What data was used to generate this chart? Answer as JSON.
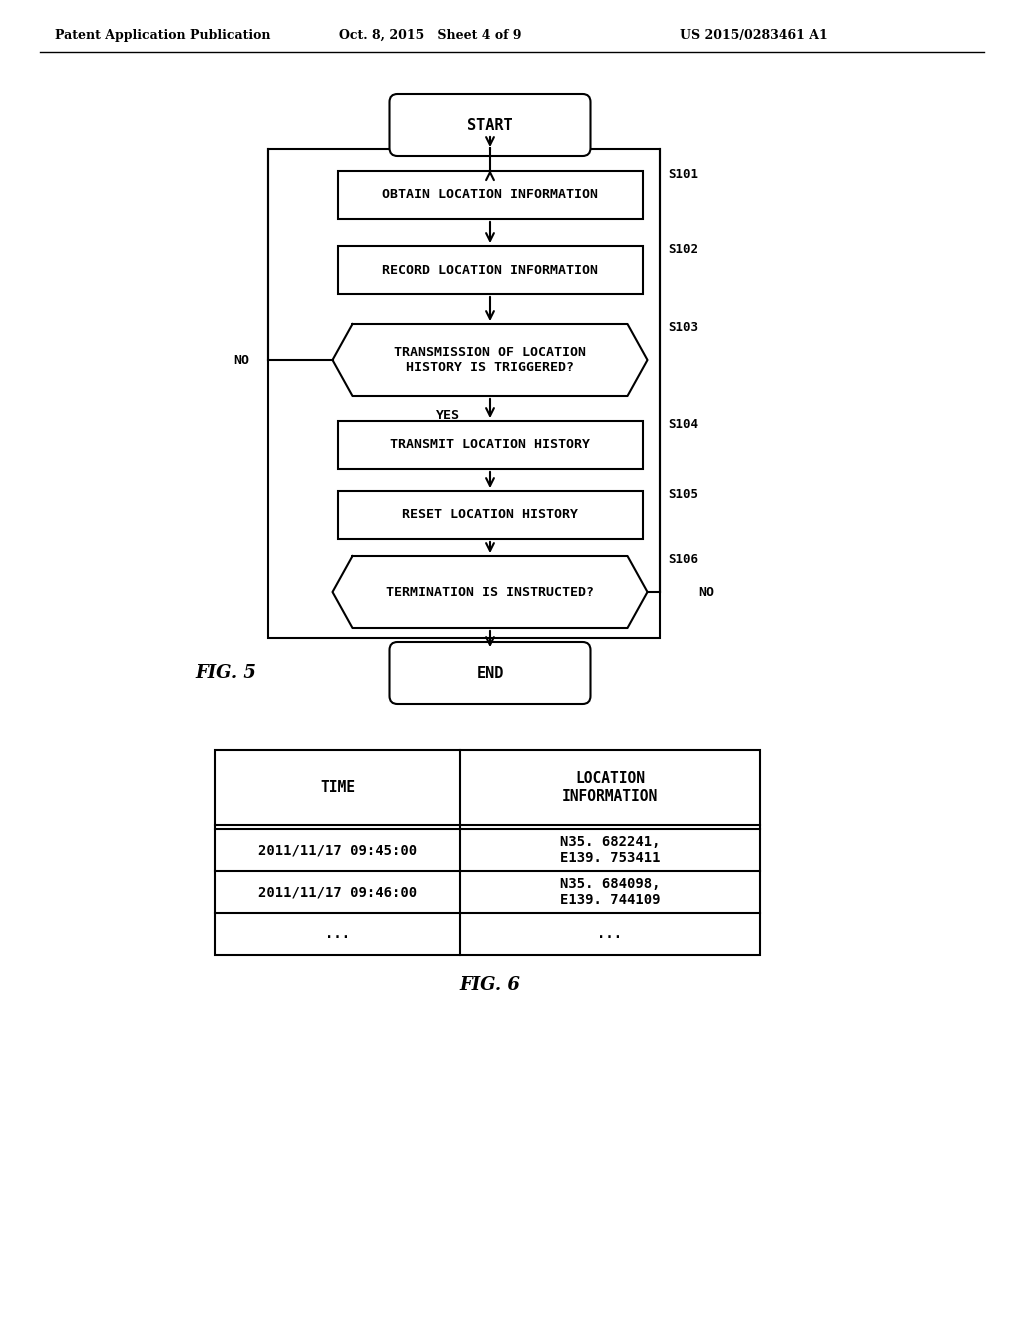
{
  "bg_color": "#ffffff",
  "header_left": "Patent Application Publication",
  "header_mid": "Oct. 8, 2015   Sheet 4 of 9",
  "header_right": "US 2015/0283461 A1",
  "fig5_label": "FIG. 5",
  "fig6_label": "FIG. 6",
  "flowchart": {
    "start_text": "START",
    "end_text": "END",
    "boxes": [
      {
        "id": "s101",
        "text": "OBTAIN LOCATION INFORMATION",
        "label": "S101",
        "type": "rect"
      },
      {
        "id": "s102",
        "text": "RECORD LOCATION INFORMATION",
        "label": "S102",
        "type": "rect"
      },
      {
        "id": "s103",
        "text": "TRANSMISSION OF LOCATION\nHISTORY IS TRIGGERED?",
        "label": "S103",
        "type": "diamond"
      },
      {
        "id": "s104",
        "text": "TRANSMIT LOCATION HISTORY",
        "label": "S104",
        "type": "rect"
      },
      {
        "id": "s105",
        "text": "RESET LOCATION HISTORY",
        "label": "S105",
        "type": "rect"
      },
      {
        "id": "s106",
        "text": "TERMINATION IS INSTRUCTED?",
        "label": "S106",
        "type": "diamond"
      }
    ]
  },
  "table": {
    "col1_header": "TIME",
    "col2_header": "LOCATION\nINFORMATION",
    "rows": [
      {
        "time": "2011/11/17 09:45:00",
        "location": "N35. 682241,\nE139. 753411"
      },
      {
        "time": "2011/11/17 09:46:00",
        "location": "N35. 684098,\nE139. 744109"
      },
      {
        "time": "...",
        "location": "..."
      }
    ]
  }
}
